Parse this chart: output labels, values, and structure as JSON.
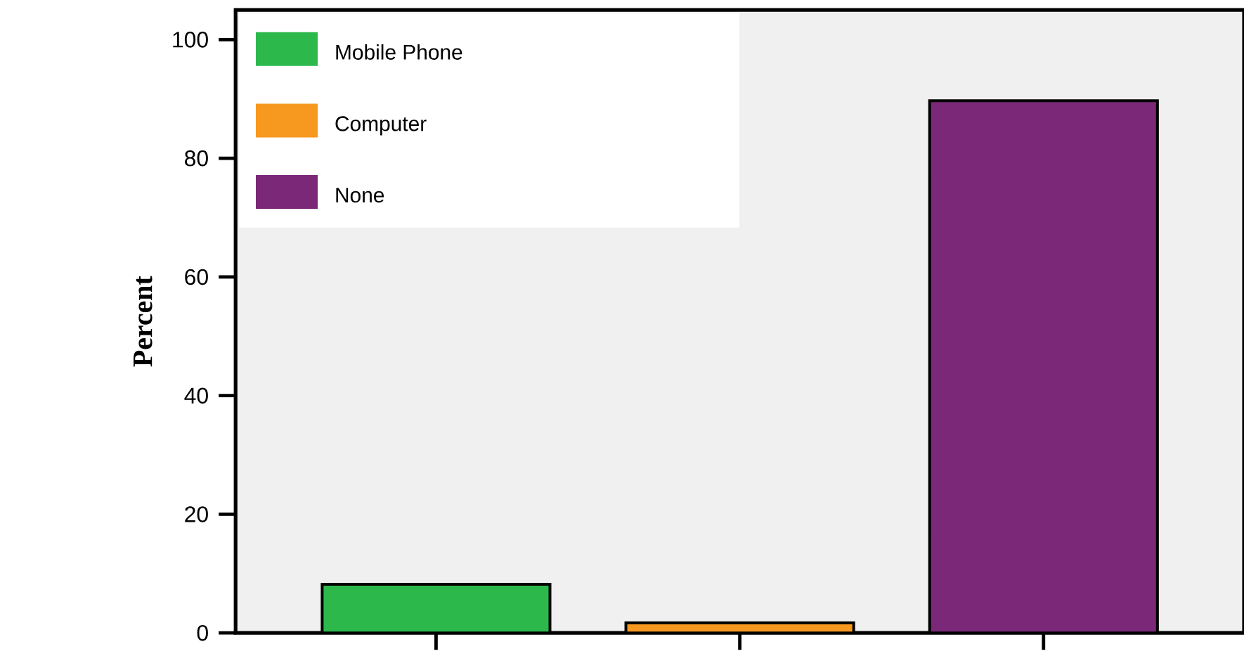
{
  "chart_data": {
    "type": "bar",
    "ylabel": "Percent",
    "categories": [
      null,
      null,
      null
    ],
    "series": [
      {
        "name": "Mobile Phone",
        "color": "#2db84c",
        "values": [
          8.2,
          0,
          0
        ]
      },
      {
        "name": "Computer",
        "color": "#f7981f",
        "values": [
          0,
          1.7,
          0
        ]
      },
      {
        "name": "None",
        "color": "#7b2878",
        "values": [
          0,
          0,
          89.7
        ]
      }
    ],
    "stacked": true,
    "ylim": [
      0,
      105
    ],
    "yticks": [
      0,
      20,
      40,
      60,
      80,
      100
    ],
    "legend": "top left",
    "tick_labels": "y",
    "grid": false
  }
}
